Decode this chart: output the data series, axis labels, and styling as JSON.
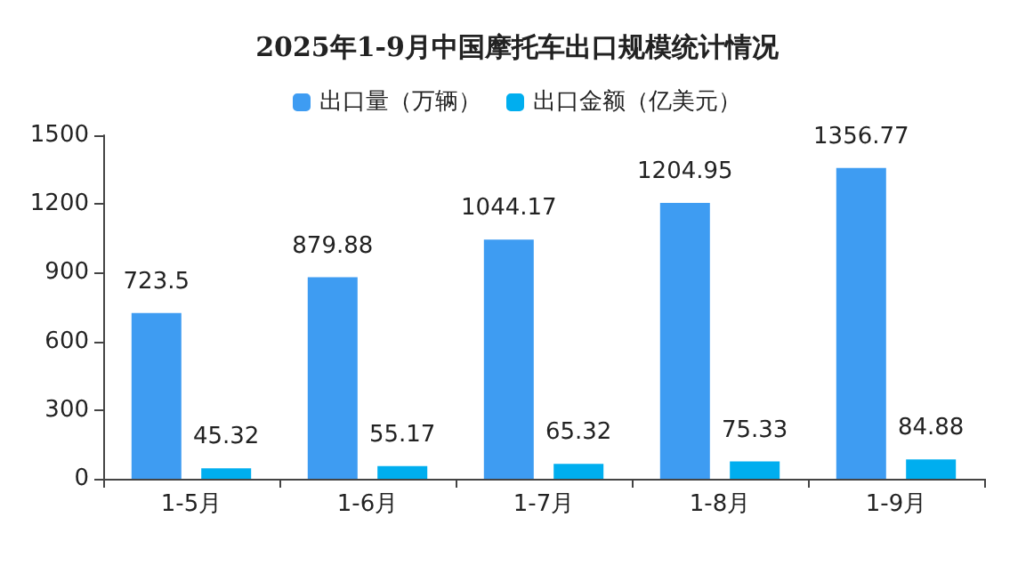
{
  "chart_data": {
    "type": "bar",
    "title": "2025年1-9月中国摩托车出口规模统计情况",
    "categories": [
      "1-5月",
      "1-6月",
      "1-7月",
      "1-8月",
      "1-9月"
    ],
    "series": [
      {
        "name": "出口量（万辆）",
        "color": "#3e9cf2",
        "values": [
          723.5,
          879.88,
          1044.17,
          1204.95,
          1356.77
        ]
      },
      {
        "name": "出口金额（亿美元）",
        "color": "#00aeef",
        "values": [
          45.32,
          55.17,
          65.32,
          75.33,
          84.88
        ]
      }
    ],
    "ylim": [
      0,
      1500
    ],
    "yticks": [
      0,
      300,
      600,
      900,
      1200,
      1500
    ],
    "grid": false,
    "legend": "top",
    "data_labels": true
  }
}
